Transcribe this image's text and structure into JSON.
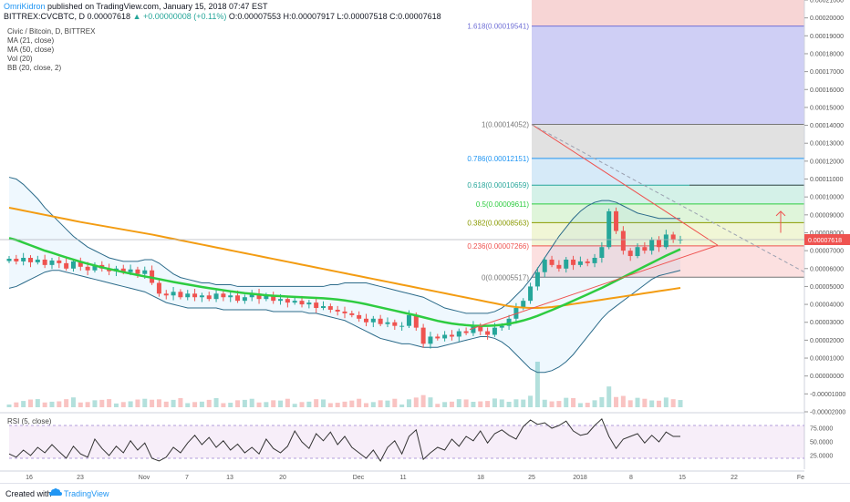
{
  "header": {
    "author": "OmriKidron",
    "published": "published on TradingView.com, January 15, 2018 07:47 EST",
    "symbol_line": "BITTREX:CVCBTC, D 0.00007618",
    "change": "▲ +0.00000008 (+0.11%)",
    "ohlc": "O:0.00007553 H:0.00007917 L:0.00007518 C:0.00007618"
  },
  "legend": [
    "Civic / Bitcoin, D, BITTREX",
    "MA (21, close)",
    "MA (50, close)",
    "Vol (20)",
    "BB (20, close, 2)"
  ],
  "rsi_label": "RSI (5, close)",
  "footer": {
    "created": "Created with",
    "brand": "TradingView"
  },
  "colors": {
    "up": "#26a69a",
    "down": "#ef5350",
    "ma21": "#2ecc40",
    "ma50": "#f39c12",
    "bb": "#2c6b8a",
    "rsi": "#333333",
    "fib_red": "#f4c7c7",
    "fib_purple": "#c5c5f2"
  },
  "chart_data": [
    {
      "type": "candlestick",
      "title": "Civic / Bitcoin, D, BITTREX",
      "x": [
        "16",
        "23",
        "Nov",
        "7",
        "13",
        "20",
        "Dec",
        "11",
        "18",
        "25",
        "2018",
        "8",
        "15",
        "22",
        "Fe"
      ],
      "y_ticks": [
        "0.00021000",
        "0.00020000",
        "0.00019000",
        "0.00018000",
        "0.00017000",
        "0.00016000",
        "0.00015000",
        "0.00014000",
        "0.00013000",
        "0.00012000",
        "0.00011000",
        "0.00010000",
        "0.00009000",
        "0.00008000",
        "0.00007000",
        "0.00006000",
        "0.00005000",
        "0.00004000",
        "0.00003000",
        "0.00002000",
        "0.00001000",
        "0.00000000",
        "-0.00001000",
        "-0.00002000"
      ],
      "ylim": [
        -2e-05,
        0.00021
      ],
      "last_price": "0.00007618",
      "price": [
        6.55e-05,
        6.4e-05,
        6.6e-05,
        6.35e-05,
        6.5e-05,
        6.2e-05,
        6.45e-05,
        6.3e-05,
        6e-05,
        6.4e-05,
        6.1e-05,
        5.9e-05,
        6.2e-05,
        6e-05,
        5.85e-05,
        6e-05,
        5.8e-05,
        5.95e-05,
        5.7e-05,
        5.9e-05,
        5.2e-05,
        4.6e-05,
        4.5e-05,
        4.7e-05,
        4.4e-05,
        4.6e-05,
        4.4e-05,
        4.5e-05,
        4.3e-05,
        4.6e-05,
        4.4e-05,
        4.5e-05,
        4.2e-05,
        4.4e-05,
        4.6e-05,
        4.3e-05,
        4.5e-05,
        4.2e-05,
        4.3e-05,
        4.1e-05,
        4.2e-05,
        4e-05,
        4.1e-05,
        3.8e-05,
        3.9e-05,
        3.7e-05,
        3.6e-05,
        3.5e-05,
        3.4e-05,
        3.2e-05,
        3e-05,
        3.2e-05,
        2.9e-05,
        3e-05,
        2.8e-05,
        2.8e-05,
        3.4e-05,
        2.7e-05,
        1.8e-05,
        2.2e-05,
        2.1e-05,
        2.3e-05,
        2.2e-05,
        2.5e-05,
        2.4e-05,
        2.8e-05,
        2.5e-05,
        2.3e-05,
        2.7e-05,
        2.8e-05,
        3.2e-05,
        3.8e-05,
        4.2e-05,
        5e-05,
        5.8e-05,
        6.5e-05,
        6.2e-05,
        6e-05,
        6.5e-05,
        6.2e-05,
        6.4e-05,
        6.3e-05,
        6.6e-05,
        7.2e-05,
        9.2e-05,
        8.1e-05,
        7e-05,
        6.7e-05,
        7.2e-05,
        7e-05,
        7.6e-05,
        7.2e-05,
        7.9e-05,
        7.6e-05,
        7.62e-05
      ],
      "ma21": [
        7.7e-05,
        7.6e-05,
        7.45e-05,
        7.3e-05,
        7.15e-05,
        7e-05,
        6.88e-05,
        6.75e-05,
        6.62e-05,
        6.5e-05,
        6.38e-05,
        6.27e-05,
        6.17e-05,
        6.07e-05,
        5.98e-05,
        5.89e-05,
        5.8e-05,
        5.72e-05,
        5.64e-05,
        5.56e-05,
        5.49e-05,
        5.41e-05,
        5.33e-05,
        5.25e-05,
        5.18e-05,
        5.11e-05,
        5.04e-05,
        4.97e-05,
        4.91e-05,
        4.85e-05,
        4.79e-05,
        4.73e-05,
        4.68e-05,
        4.63e-05,
        4.59e-05,
        4.55e-05,
        4.51e-05,
        4.48e-05,
        4.46e-05,
        4.44e-05,
        4.42e-05,
        4.4e-05,
        4.38e-05,
        4.36e-05,
        4.34e-05,
        4.31e-05,
        4.27e-05,
        4.22e-05,
        4.16e-05,
        4.09e-05,
        4.01e-05,
        3.92e-05,
        3.83e-05,
        3.74e-05,
        3.65e-05,
        3.56e-05,
        3.47e-05,
        3.38e-05,
        3.28e-05,
        3.18e-05,
        3.08e-05,
        3e-05,
        2.93e-05,
        2.88e-05,
        2.84e-05,
        2.81e-05,
        2.8e-05,
        2.8e-05,
        2.82e-05,
        2.86e-05,
        2.92e-05,
        3e-05,
        3.1e-05,
        3.22e-05,
        3.36e-05,
        3.52e-05,
        3.68e-05,
        3.85e-05,
        4.02e-05,
        4.2e-05,
        4.38e-05,
        4.56e-05,
        4.74e-05,
        4.92e-05,
        5.12e-05,
        5.32e-05,
        5.52e-05,
        5.72e-05,
        5.92e-05,
        6.12e-05,
        6.32e-05,
        6.52e-05,
        6.72e-05,
        6.9e-05,
        7.08e-05
      ],
      "ma50": [
        9.4e-05,
        9.32e-05,
        9.24e-05,
        9.16e-05,
        9.08e-05,
        9e-05,
        8.92e-05,
        8.84e-05,
        8.76e-05,
        8.68e-05,
        8.6e-05,
        8.53e-05,
        8.46e-05,
        8.39e-05,
        8.32e-05,
        8.25e-05,
        8.18e-05,
        8.11e-05,
        8.04e-05,
        7.97e-05,
        7.9e-05,
        7.82e-05,
        7.74e-05,
        7.66e-05,
        7.58e-05,
        7.5e-05,
        7.42e-05,
        7.34e-05,
        7.26e-05,
        7.18e-05,
        7.1e-05,
        7.02e-05,
        6.94e-05,
        6.86e-05,
        6.78e-05,
        6.7e-05,
        6.62e-05,
        6.54e-05,
        6.46e-05,
        6.38e-05,
        6.3e-05,
        6.22e-05,
        6.14e-05,
        6.06e-05,
        5.98e-05,
        5.9e-05,
        5.82e-05,
        5.74e-05,
        5.66e-05,
        5.58e-05,
        5.5e-05,
        5.42e-05,
        5.34e-05,
        5.26e-05,
        5.18e-05,
        5.1e-05,
        5.02e-05,
        4.94e-05,
        4.86e-05,
        4.78e-05,
        4.7e-05,
        4.62e-05,
        4.54e-05,
        4.46e-05,
        4.38e-05,
        4.3e-05,
        4.22e-05,
        4.14e-05,
        4.06e-05,
        3.98e-05,
        3.9e-05,
        3.85e-05,
        3.82e-05,
        3.8e-05,
        3.8e-05,
        3.82e-05,
        3.85e-05,
        3.9e-05,
        3.96e-05,
        4.02e-05,
        4.08e-05,
        4.14e-05,
        4.2e-05,
        4.26e-05,
        4.32e-05,
        4.38e-05,
        4.44e-05,
        4.5e-05,
        4.56e-05,
        4.62e-05,
        4.68e-05,
        4.74e-05,
        4.8e-05,
        4.86e-05,
        4.92e-05
      ],
      "bb_upper": [
        0.000111,
        0.00011,
        0.000107,
        0.000103,
        9.9e-05,
        9.4e-05,
        9e-05,
        8.6e-05,
        8.2e-05,
        7.8e-05,
        7.5e-05,
        7.2e-05,
        7e-05,
        6.8e-05,
        6.6e-05,
        6.5e-05,
        6.4e-05,
        6.4e-05,
        6.4e-05,
        6.5e-05,
        6.5e-05,
        6.3e-05,
        6e-05,
        5.7e-05,
        5.5e-05,
        5.4e-05,
        5.3e-05,
        5.2e-05,
        5.2e-05,
        5.1e-05,
        5.1e-05,
        5.1e-05,
        5e-05,
        5e-05,
        5e-05,
        5e-05,
        5e-05,
        5e-05,
        5e-05,
        5e-05,
        5e-05,
        5e-05,
        5e-05,
        5e-05,
        5e-05,
        5.1e-05,
        5.1e-05,
        5.2e-05,
        5.2e-05,
        5.2e-05,
        5.2e-05,
        5.1e-05,
        5e-05,
        4.9e-05,
        4.8e-05,
        4.7e-05,
        4.6e-05,
        4.5e-05,
        4.4e-05,
        4.2e-05,
        4e-05,
        3.8e-05,
        3.7e-05,
        3.6e-05,
        3.5e-05,
        3.5e-05,
        3.5e-05,
        3.5e-05,
        3.6e-05,
        3.8e-05,
        4.1e-05,
        4.5e-05,
        4.9e-05,
        5.4e-05,
        6e-05,
        6.6e-05,
        7.2e-05,
        7.8e-05,
        8.3e-05,
        8.8e-05,
        9.2e-05,
        9.5e-05,
        9.7e-05,
        9.8e-05,
        9.8e-05,
        9.7e-05,
        9.5e-05,
        9.3e-05,
        9.1e-05,
        9e-05,
        8.9e-05,
        8.8e-05,
        8.8e-05,
        8.8e-05,
        8.8e-05
      ],
      "bb_lower": [
        4.9e-05,
        5e-05,
        5.2e-05,
        5.4e-05,
        5.6e-05,
        5.8e-05,
        5.9e-05,
        5.9e-05,
        5.8e-05,
        5.7e-05,
        5.6e-05,
        5.5e-05,
        5.4e-05,
        5.3e-05,
        5.2e-05,
        5.1e-05,
        5e-05,
        4.9e-05,
        4.8e-05,
        4.7e-05,
        4.5e-05,
        4.3e-05,
        4.1e-05,
        4e-05,
        3.9e-05,
        3.8e-05,
        3.8e-05,
        3.8e-05,
        3.8e-05,
        3.8e-05,
        3.7e-05,
        3.7e-05,
        3.7e-05,
        3.7e-05,
        3.7e-05,
        3.7e-05,
        3.7e-05,
        3.6e-05,
        3.6e-05,
        3.6e-05,
        3.6e-05,
        3.6e-05,
        3.5e-05,
        3.5e-05,
        3.4e-05,
        3.3e-05,
        3.2e-05,
        3.1e-05,
        2.9e-05,
        2.7e-05,
        2.5e-05,
        2.3e-05,
        2.1e-05,
        2e-05,
        1.9e-05,
        1.8e-05,
        1.8e-05,
        1.7e-05,
        1.6e-05,
        1.6e-05,
        1.6e-05,
        1.7e-05,
        1.8e-05,
        1.9e-05,
        2e-05,
        2.1e-05,
        2.2e-05,
        2.2e-05,
        2.1e-05,
        1.9e-05,
        1.6e-05,
        1.2e-05,
        8e-06,
        4e-06,
        2e-06,
        2e-06,
        3e-06,
        5e-06,
        8e-06,
        1.2e-05,
        1.7e-05,
        2.2e-05,
        2.7e-05,
        3.2e-05,
        3.6e-05,
        3.9e-05,
        4.2e-05,
        4.5e-05,
        4.8e-05,
        5.1e-05,
        5.4e-05,
        5.6e-05,
        5.7e-05,
        5.8e-05,
        5.9e-05
      ],
      "fib_levels": [
        {
          "label": "1.618(0.00019541)",
          "value": 0.00019541,
          "color": "#6f6fd6"
        },
        {
          "label": "1(0.00014052)",
          "value": 0.00014052,
          "color": "#777777"
        },
        {
          "label": "0.786(0.00012151)",
          "value": 0.00012151,
          "color": "#2196f3"
        },
        {
          "label": "0.618(0.00010659)",
          "value": 0.00010659,
          "color": "#26a69a"
        },
        {
          "label": "0.5(0.00009611)",
          "value": 9.611e-05,
          "color": "#2ecc40"
        },
        {
          "label": "0.382(0.00008563)",
          "value": 8.563e-05,
          "color": "#8a9a00"
        },
        {
          "label": "0.236(0.00007266)",
          "value": 7.266e-05,
          "color": "#ef5350"
        },
        {
          "label": "0(0.00005517)",
          "value": 5.517e-05,
          "color": "#777777"
        }
      ]
    },
    {
      "type": "line",
      "title": "RSI (5, close)",
      "y_ticks": [
        "75.0000",
        "50.0000",
        "25.0000"
      ],
      "ylim": [
        0,
        100
      ],
      "values": [
        28,
        22,
        35,
        25,
        40,
        30,
        45,
        32,
        20,
        42,
        28,
        22,
        55,
        38,
        25,
        42,
        30,
        52,
        35,
        48,
        20,
        15,
        22,
        40,
        30,
        48,
        62,
        45,
        58,
        40,
        52,
        35,
        46,
        30,
        40,
        28,
        55,
        38,
        30,
        42,
        70,
        50,
        38,
        65,
        52,
        68,
        45,
        60,
        40,
        30,
        20,
        35,
        15,
        40,
        52,
        28,
        60,
        72,
        18,
        30,
        40,
        35,
        55,
        42,
        60,
        52,
        70,
        48,
        65,
        72,
        62,
        55,
        78,
        90,
        82,
        85,
        75,
        80,
        88,
        70,
        62,
        65,
        80,
        92,
        60,
        38,
        55,
        60,
        65,
        48,
        62,
        50,
        68,
        60,
        60
      ]
    }
  ]
}
